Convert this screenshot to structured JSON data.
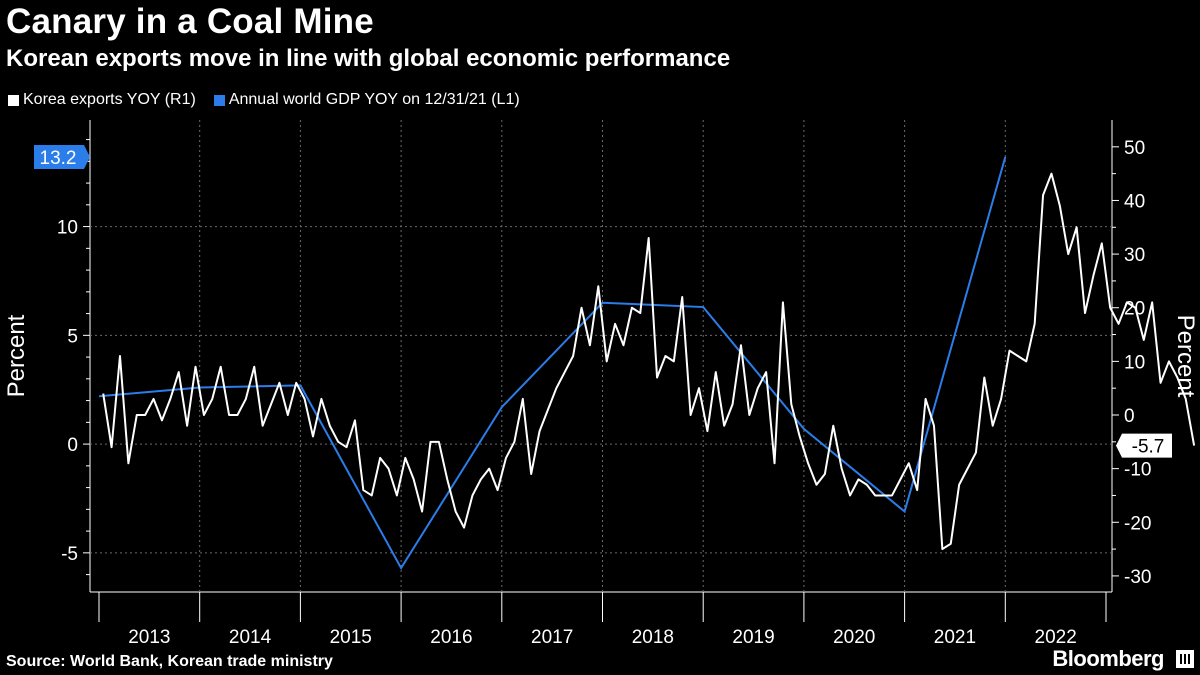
{
  "title": "Canary in a Coal Mine",
  "subtitle": "Korean exports move in line with global economic performance",
  "source": "Source: World Bank, Korean trade ministry",
  "brand": "Bloomberg",
  "colors": {
    "exports": "#ffffff",
    "gdp": "#2b7de9",
    "background": "#000000",
    "grid": "#6a6a6a"
  },
  "chart_data": {
    "type": "line",
    "x_categories": [
      "2013",
      "2014",
      "2015",
      "2016",
      "2017",
      "2018",
      "2019",
      "2020",
      "2021",
      "2022"
    ],
    "left_axis": {
      "label": "Percent",
      "range": [
        -6.8,
        14.9
      ],
      "ticks": [
        -5,
        0,
        5,
        10
      ]
    },
    "right_axis": {
      "label": "Percent",
      "range": [
        -33,
        55
      ],
      "ticks": [
        -30,
        -20,
        -10,
        0,
        10,
        20,
        30,
        40,
        50
      ]
    },
    "series": [
      {
        "name": "Korea exports YOY (R1)",
        "axis": "right",
        "color": "#ffffff",
        "frequency": "monthly",
        "start": "2013-01",
        "values": [
          4,
          -6,
          11,
          -9,
          0,
          0,
          3,
          -1,
          3,
          8,
          -2,
          9,
          0,
          3,
          9,
          0,
          0,
          3,
          9,
          -2,
          2,
          6,
          0,
          6,
          3,
          -4,
          3,
          -2,
          -5,
          -6,
          -1,
          -14,
          -15,
          -8,
          -10,
          -15,
          -8,
          -12,
          -18,
          -5,
          -5,
          -12,
          -18,
          -21,
          -15,
          -12,
          -10,
          -14,
          -8,
          -5,
          3,
          -11,
          -3,
          1,
          5,
          8,
          11,
          20,
          13,
          24,
          10,
          17,
          13,
          20,
          19,
          33,
          7,
          11,
          10,
          22,
          0,
          5,
          -3,
          8,
          -2,
          2,
          13,
          0,
          5,
          8,
          -9,
          21,
          2,
          -4,
          -9,
          -13,
          -11,
          -2,
          -10,
          -15,
          -12,
          -13,
          -15,
          -15,
          -15,
          -12,
          -9,
          -14,
          3,
          -2,
          -25,
          -24,
          -13,
          -10,
          -7,
          7,
          -2,
          3,
          12,
          11,
          10,
          17,
          41,
          45,
          39,
          30,
          35,
          19,
          26,
          32,
          20,
          17,
          21,
          20,
          14,
          21,
          6,
          10,
          7,
          3,
          -5.7
        ]
      },
      {
        "name": "Annual world GDP YOY on 12/31/21 (L1)",
        "axis": "left",
        "color": "#2b7de9",
        "frequency": "annual",
        "dates": [
          "2012-12",
          "2013-12",
          "2014-12",
          "2015-12",
          "2016-12",
          "2017-12",
          "2018-12",
          "2019-12",
          "2020-12",
          "2021-12"
        ],
        "values": [
          2.2,
          2.6,
          2.7,
          -5.7,
          1.7,
          6.5,
          6.3,
          0.7,
          -3.1,
          13.2
        ]
      }
    ],
    "labels": {
      "left_last_value": "13.2",
      "right_last_value": "-5.7"
    }
  },
  "legend": [
    {
      "label": "Korea exports YOY (R1)",
      "color": "#ffffff"
    },
    {
      "label": "Annual world GDP YOY on 12/31/21 (L1)",
      "color": "#2b7de9"
    }
  ]
}
